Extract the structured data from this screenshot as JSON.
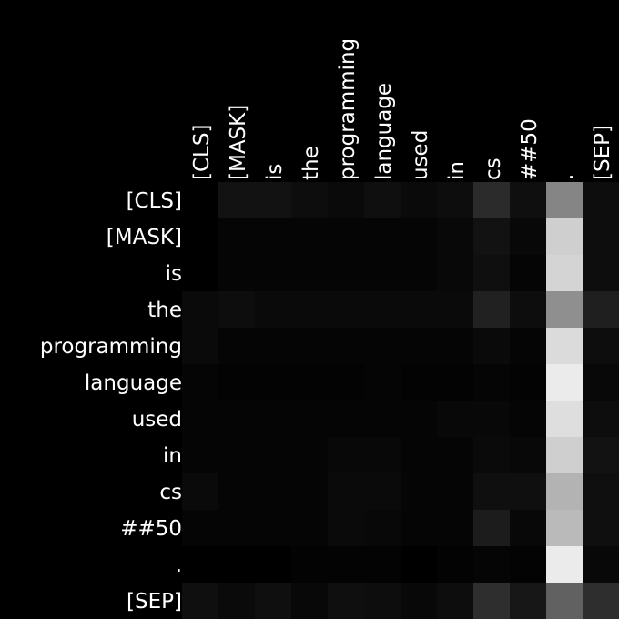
{
  "chart_data": {
    "type": "heatmap",
    "title": "",
    "xlabel": "",
    "ylabel": "",
    "x_labels": [
      "[CLS]",
      "[MASK]",
      "is",
      "the",
      "programming",
      "language",
      "used",
      "in",
      "cs",
      "##50",
      ".",
      "[SEP]"
    ],
    "y_labels": [
      "[CLS]",
      "[MASK]",
      "is",
      "the",
      "programming",
      "language",
      "used",
      "in",
      "cs",
      "##50",
      ".",
      "[SEP]"
    ],
    "colormap": "grayscale",
    "range": [
      0,
      1
    ],
    "values": [
      [
        0.0,
        0.07,
        0.07,
        0.05,
        0.04,
        0.06,
        0.04,
        0.05,
        0.17,
        0.06,
        0.52,
        0.05
      ],
      [
        0.0,
        0.02,
        0.02,
        0.02,
        0.02,
        0.02,
        0.02,
        0.03,
        0.07,
        0.03,
        0.81,
        0.05
      ],
      [
        0.0,
        0.02,
        0.02,
        0.02,
        0.02,
        0.02,
        0.02,
        0.03,
        0.06,
        0.02,
        0.83,
        0.05
      ],
      [
        0.04,
        0.05,
        0.04,
        0.04,
        0.04,
        0.04,
        0.04,
        0.04,
        0.13,
        0.05,
        0.56,
        0.12
      ],
      [
        0.04,
        0.02,
        0.02,
        0.02,
        0.02,
        0.02,
        0.02,
        0.02,
        0.04,
        0.02,
        0.86,
        0.05
      ],
      [
        0.02,
        0.01,
        0.01,
        0.01,
        0.01,
        0.02,
        0.01,
        0.01,
        0.02,
        0.01,
        0.92,
        0.03
      ],
      [
        0.02,
        0.02,
        0.02,
        0.02,
        0.02,
        0.02,
        0.02,
        0.03,
        0.03,
        0.02,
        0.87,
        0.05
      ],
      [
        0.02,
        0.02,
        0.02,
        0.02,
        0.03,
        0.03,
        0.02,
        0.02,
        0.04,
        0.03,
        0.81,
        0.07
      ],
      [
        0.04,
        0.02,
        0.02,
        0.02,
        0.04,
        0.04,
        0.02,
        0.02,
        0.06,
        0.06,
        0.7,
        0.06
      ],
      [
        0.02,
        0.02,
        0.02,
        0.02,
        0.04,
        0.03,
        0.02,
        0.02,
        0.11,
        0.03,
        0.73,
        0.06
      ],
      [
        0.0,
        0.0,
        0.0,
        0.01,
        0.01,
        0.01,
        0.0,
        0.01,
        0.02,
        0.01,
        0.92,
        0.03
      ],
      [
        0.06,
        0.04,
        0.06,
        0.03,
        0.06,
        0.05,
        0.03,
        0.05,
        0.18,
        0.09,
        0.38,
        0.18
      ]
    ]
  }
}
